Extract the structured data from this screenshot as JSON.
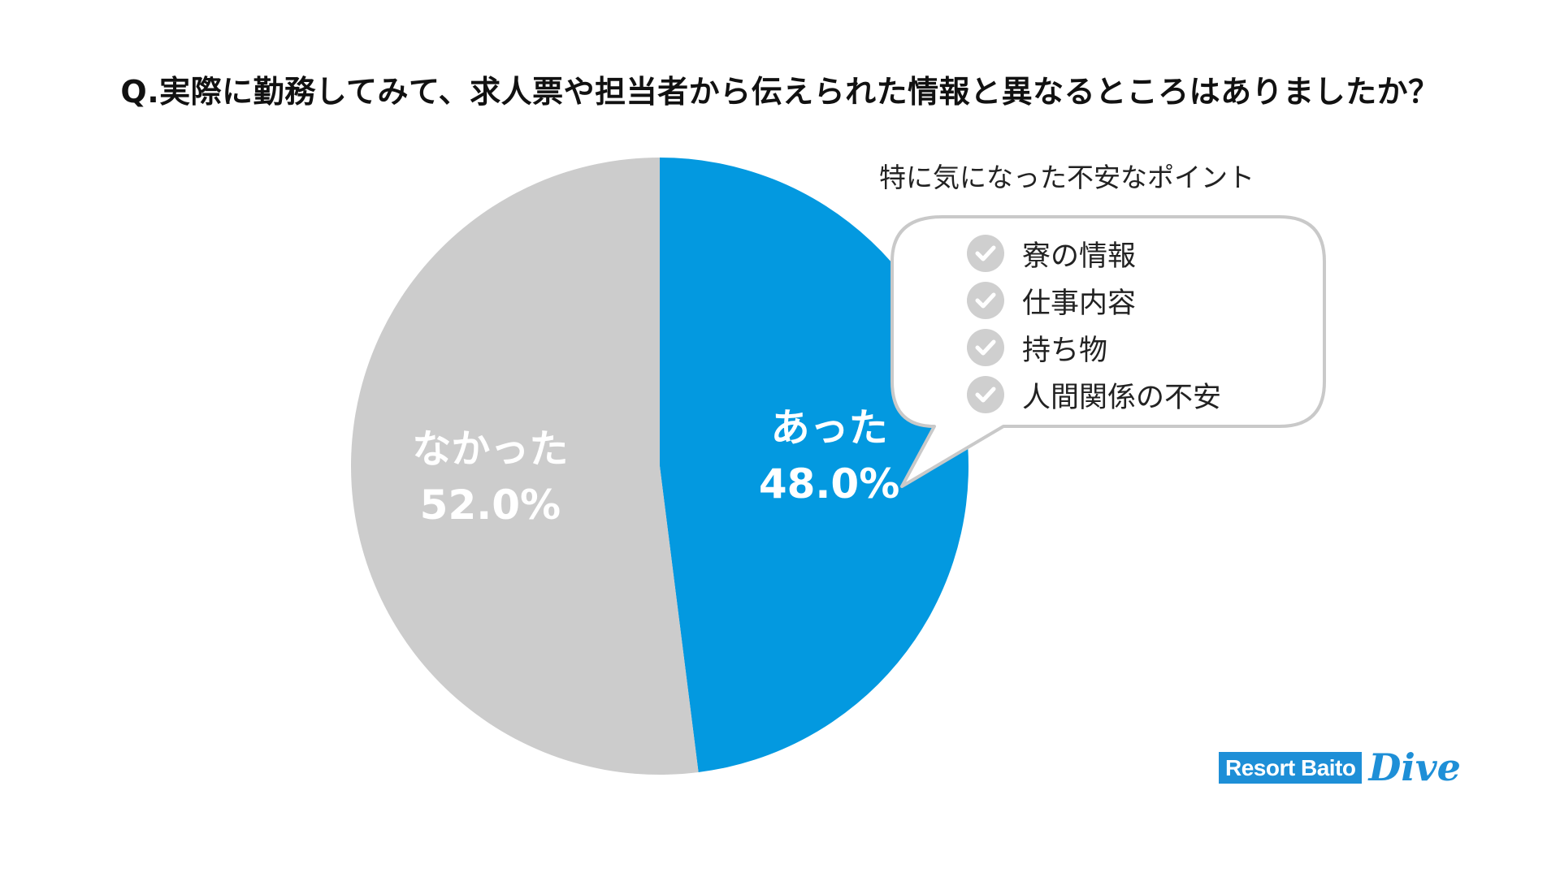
{
  "title": "Q.実際に勤務してみて、求人票や担当者から伝えられた情報と異なるところはありましたか？",
  "chart_data": {
    "type": "pie",
    "title": "Q.実際に勤務してみて、求人票や担当者から伝えられた情報と異なるところはありましたか？",
    "start": "top",
    "direction": "clockwise",
    "slices": [
      {
        "label": "あった",
        "value": 48.0,
        "value_label": "48.0%",
        "color": "#0399e0"
      },
      {
        "label": "なかった",
        "value": 52.0,
        "value_label": "52.0%",
        "color": "#cccccc"
      }
    ]
  },
  "callout": {
    "title": "特に気になった不安なポイント",
    "items": [
      "寮の情報",
      "仕事内容",
      "持ち物",
      "人間関係の不安"
    ]
  },
  "logo": {
    "box_text": "Resort Baito",
    "script_text": "Dive",
    "color": "#1e8fd7"
  }
}
